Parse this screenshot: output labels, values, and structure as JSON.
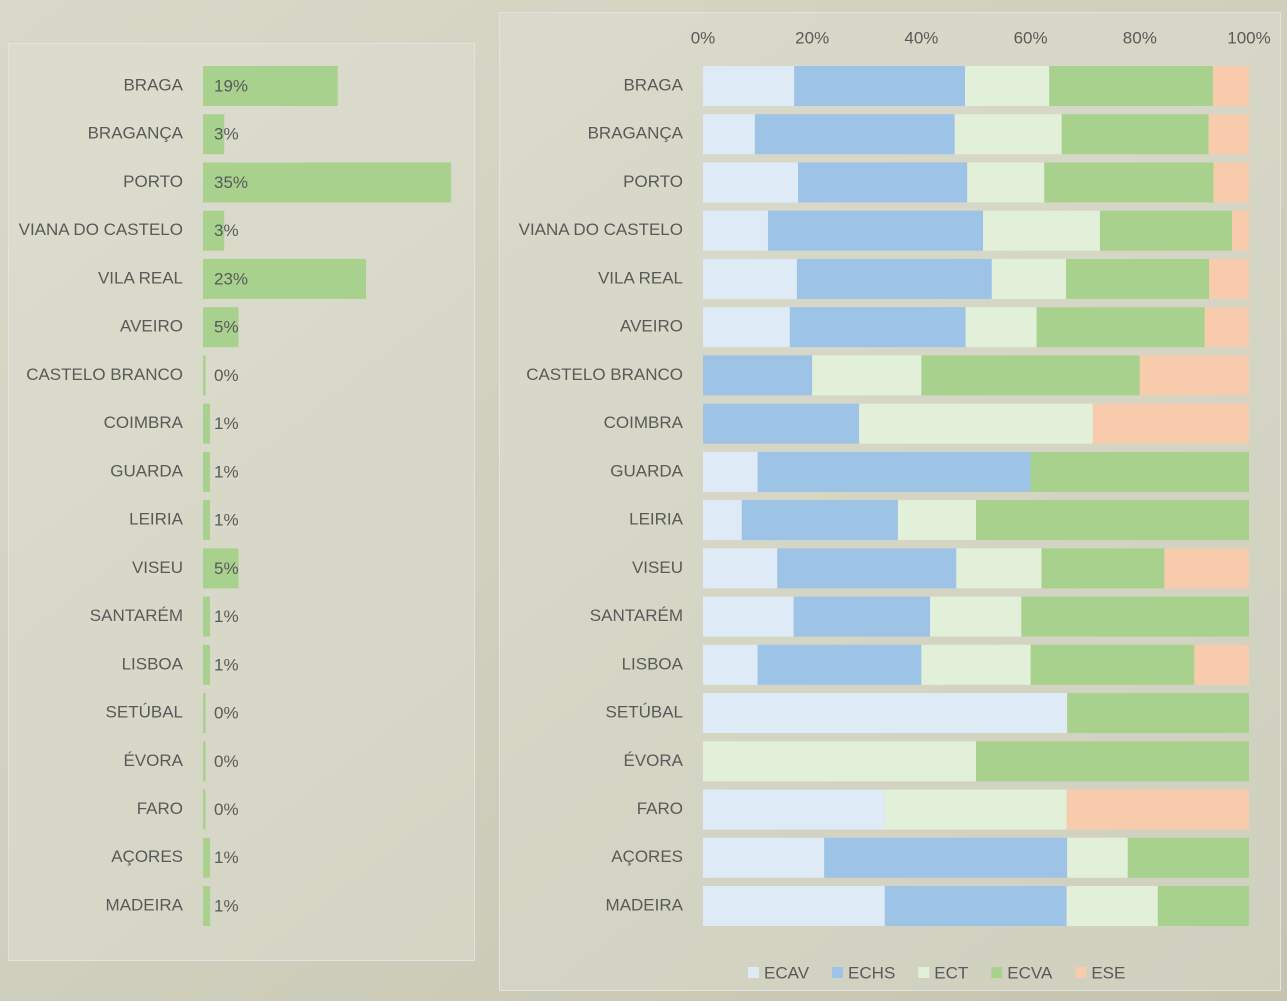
{
  "chart_data": [
    {
      "type": "hbar",
      "categories": [
        "BRAGA",
        "BRAGANÇA",
        "PORTO",
        "VIANA DO CASTELO",
        "VILA REAL",
        "AVEIRO",
        "CASTELO BRANCO",
        "COIMBRA",
        "GUARDA",
        "LEIRIA",
        "VISEU",
        "SANTARÉM",
        "LISBOA",
        "SETÚBAL",
        "ÉVORA",
        "FARO",
        "AÇORES",
        "MADEIRA"
      ],
      "values": [
        19,
        3,
        35,
        3,
        23,
        5,
        0,
        1,
        1,
        1,
        5,
        1,
        1,
        0,
        0,
        0,
        1,
        1
      ],
      "value_labels": [
        "19%",
        "3%",
        "35%",
        "3%",
        "23%",
        "5%",
        "0%",
        "1%",
        "1%",
        "1%",
        "5%",
        "1%",
        "1%",
        "0%",
        "0%",
        "0%",
        "1%",
        "1%"
      ],
      "color": "#a9d18e"
    },
    {
      "type": "stacked_hbar",
      "categories": [
        "BRAGA",
        "BRAGANÇA",
        "PORTO",
        "VIANA DO CASTELO",
        "VILA REAL",
        "AVEIRO",
        "CASTELO BRANCO",
        "COIMBRA",
        "GUARDA",
        "LEIRIA",
        "VISEU",
        "SANTARÉM",
        "LISBOA",
        "SETÚBAL",
        "ÉVORA",
        "FARO",
        "AÇORES",
        "MADEIRA"
      ],
      "series": [
        {
          "name": "ECAV",
          "color": "#deebf7",
          "values": [
            16.7,
            9.5,
            17.4,
            11.9,
            17.2,
            15.9,
            0,
            0,
            10,
            7.1,
            13.6,
            16.6,
            10,
            66.7,
            0,
            33.3,
            22.2,
            33.3
          ]
        },
        {
          "name": "ECHS",
          "color": "#9dc3e6",
          "values": [
            31.3,
            36.6,
            31,
            39.4,
            35.7,
            32.2,
            20,
            28.6,
            50,
            28.6,
            32.8,
            25,
            30,
            0,
            0,
            0,
            44.5,
            33.3
          ]
        },
        {
          "name": "ECT",
          "color": "#e2f0d9",
          "values": [
            15.4,
            19.6,
            14.1,
            21.4,
            13.6,
            13,
            20,
            42.8,
            0,
            14.3,
            15.6,
            16.7,
            20,
            0,
            50,
            33.3,
            11.1,
            16.7
          ]
        },
        {
          "name": "ECVA",
          "color": "#a9d18e",
          "values": [
            30,
            26.9,
            31,
            24.2,
            26.2,
            30.8,
            40,
            0,
            40,
            50,
            22.5,
            41.7,
            30,
            33.3,
            50,
            0,
            22.2,
            16.7
          ]
        },
        {
          "name": "ESE",
          "color": "#f8cbad",
          "values": [
            6.6,
            7.4,
            6.5,
            3.1,
            7.3,
            8.1,
            20,
            28.6,
            0,
            0,
            15.5,
            0,
            10,
            0,
            0,
            33.4,
            0,
            0
          ]
        }
      ],
      "xlim": [
        0,
        100
      ],
      "xticks": [
        {
          "value": 0,
          "label": "0%"
        },
        {
          "value": 20,
          "label": "20%"
        },
        {
          "value": 40,
          "label": "40%"
        },
        {
          "value": 60,
          "label": "60%"
        },
        {
          "value": 80,
          "label": "80%"
        },
        {
          "value": 100,
          "label": "100%"
        }
      ],
      "legend": "bottom"
    }
  ]
}
